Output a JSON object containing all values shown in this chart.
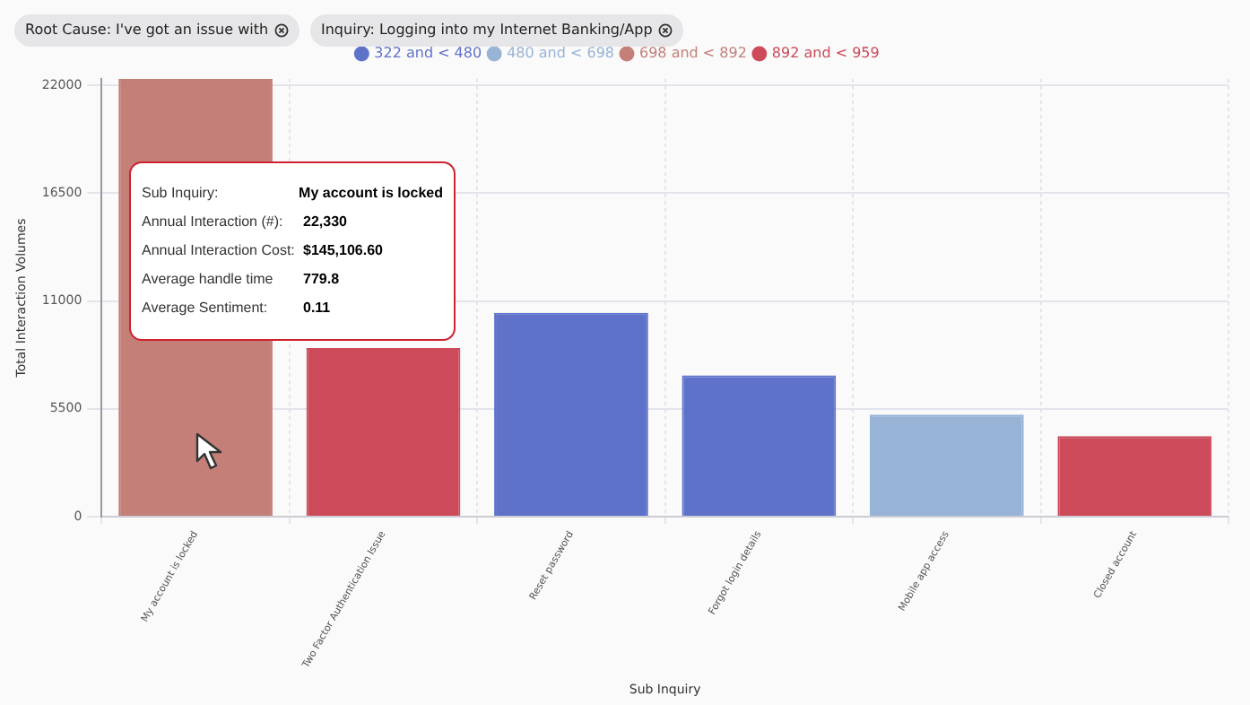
{
  "chart_data": {
    "type": "bar",
    "xlabel": "Sub Inquiry",
    "ylabel": "Total Interaction Volumes",
    "categories": [
      "My account is locked",
      "Two Factor Authentication Issue",
      "Reset password",
      "Forgot login details",
      "Mobile app access",
      "Closed account"
    ],
    "series": [
      {
        "name": "322 and < 480",
        "color": "#5f72c9",
        "values": [
          null,
          null,
          10400,
          7200,
          null,
          null
        ]
      },
      {
        "name": "480 and < 698",
        "color": "#97b3d6",
        "values": [
          null,
          null,
          null,
          null,
          5200,
          null
        ]
      },
      {
        "name": "698 and < 892",
        "color": "#c47f78",
        "values": [
          22330,
          null,
          null,
          null,
          null,
          null
        ]
      },
      {
        "name": "892 and < 959",
        "color": "#cc4a5a",
        "values": [
          null,
          8600,
          null,
          null,
          null,
          4100
        ]
      }
    ],
    "ylim": [
      0,
      22330
    ],
    "yticks": [
      0,
      5500,
      11000,
      16500,
      22000
    ],
    "grid": true,
    "legend": "top",
    "annotations": [
      "Root Cause: I've got an issue with",
      "Inquiry: Logging into my Internet Banking/App",
      "Sub Inquiry:",
      "My account is locked",
      "Annual Interaction (#):",
      "22,330",
      "Annual Interaction Cost:",
      "$145,106.60",
      "Average handle time",
      "779.8",
      "Average Sentiment:",
      "0.11"
    ]
  }
}
